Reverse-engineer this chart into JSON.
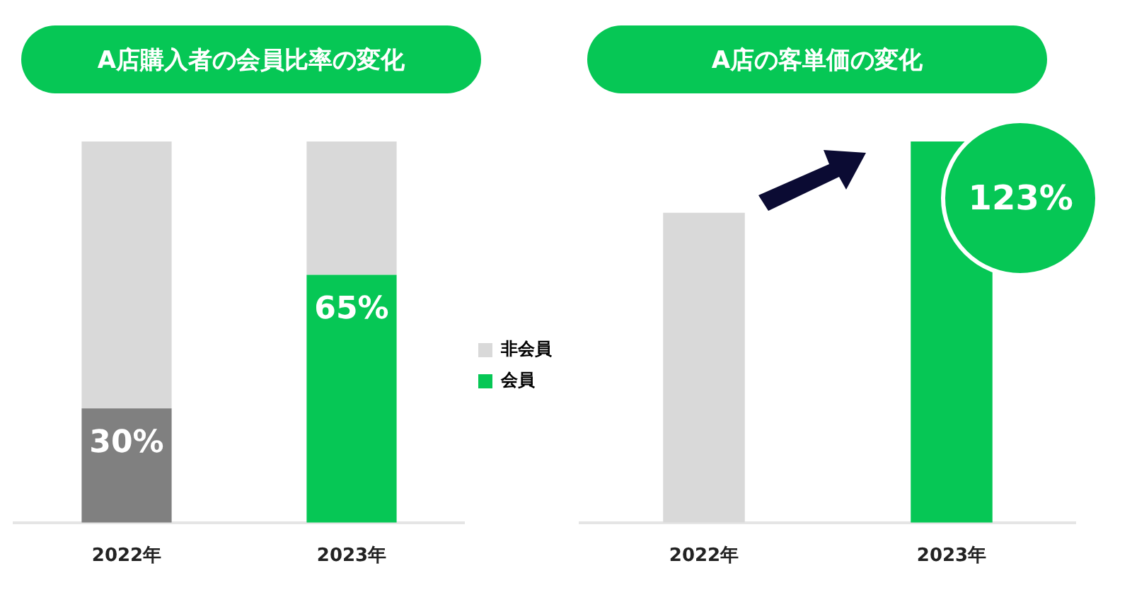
{
  "chart_data": [
    {
      "type": "bar",
      "title": "A店購入者の会員比率の変化",
      "categories": [
        "2022年",
        "2023年"
      ],
      "stacked": true,
      "legend": "right",
      "grid": false,
      "tick_labels": "x",
      "ylim": [
        0,
        100
      ],
      "series": [
        {
          "name": "会員",
          "color": "#06c755",
          "colors": [
            "#808080",
            "#06c755"
          ],
          "values": [
            30,
            65
          ],
          "value_labels": [
            "30%",
            "65%"
          ]
        },
        {
          "name": "非会員",
          "color": "#d9d9d9",
          "values": [
            70,
            35
          ]
        }
      ]
    },
    {
      "type": "bar",
      "title": "A店の客単価の変化",
      "categories": [
        "2022年",
        "2023年"
      ],
      "grid": false,
      "tick_labels": "x",
      "ylim": [
        0,
        123
      ],
      "colors": [
        "#d9d9d9",
        "#06c755"
      ],
      "values": [
        100,
        123
      ],
      "value_labels": [
        null,
        "123%"
      ]
    }
  ]
}
